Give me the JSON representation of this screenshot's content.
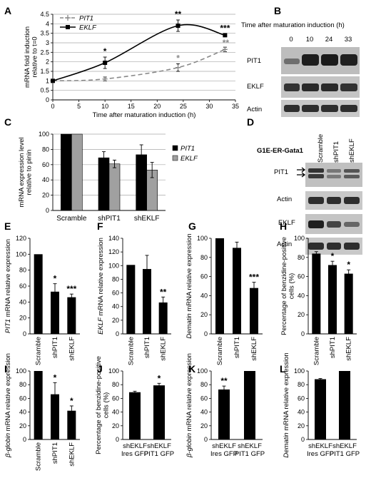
{
  "panels": {
    "A": "A",
    "B": "B",
    "C": "C",
    "D": "D",
    "E": "E",
    "F": "F",
    "G": "G",
    "H": "H",
    "I": "I",
    "J": "J",
    "K": "K",
    "L": "L"
  },
  "blotB": {
    "header": "Time after maturation induction (h)",
    "timepoints": [
      "0",
      "10",
      "24",
      "33"
    ],
    "bands": [
      "PIT1",
      "EKLF",
      "Actin"
    ]
  },
  "blotD": {
    "cellline": "G1E-ER-Gata1",
    "columns": [
      "Scramble",
      "shPIT1",
      "shEKLF"
    ],
    "bands": [
      "PIT1",
      "Actin",
      "EKLF",
      "Actin"
    ]
  },
  "chart_data": [
    {
      "id": "A",
      "type": "line",
      "x": [
        0,
        10,
        24,
        33
      ],
      "xlabel": "Time after maturation induction (h)",
      "ylabel": "mRNA fold induction relative to t=0",
      "xlim": [
        0,
        35
      ],
      "ylim": [
        0,
        4.5
      ],
      "xticks": [
        "0",
        "5",
        "10",
        "15",
        "20",
        "25",
        "30",
        "35"
      ],
      "yticks": [
        "0",
        "0.5",
        "1",
        "1.5",
        "2",
        "2.5",
        "3",
        "3.5",
        "4",
        "4.5"
      ],
      "grid": true,
      "legend": "top-left",
      "series": [
        {
          "name": "PIT1",
          "values": [
            1,
            1.1,
            1.7,
            2.65
          ],
          "errors": [
            0.05,
            0.1,
            0.2,
            0.12
          ],
          "style": "dashed",
          "color": "#888888"
        },
        {
          "name": "EKLF",
          "values": [
            1,
            1.95,
            3.9,
            3.4
          ],
          "errors": [
            0.05,
            0.3,
            0.3,
            0.07
          ],
          "style": "solid",
          "color": "#000000"
        }
      ],
      "annotations": [
        {
          "x": 10,
          "series": 1,
          "text": "*"
        },
        {
          "x": 24,
          "series": 1,
          "text": "**"
        },
        {
          "x": 33,
          "series": 1,
          "text": "***"
        },
        {
          "x": 24,
          "series": 0,
          "text": "*"
        },
        {
          "x": 33,
          "series": 0,
          "text": "**"
        }
      ]
    },
    {
      "id": "C",
      "type": "bar",
      "categories": [
        "Scramble",
        "shPIT1",
        "shEKLF"
      ],
      "ylabel": "mRNA expression level relative to pinin",
      "ylim": [
        0,
        100
      ],
      "yticks": [
        "0",
        "20",
        "40",
        "60",
        "80",
        "100"
      ],
      "grid": true,
      "legend": "right",
      "series": [
        {
          "name": "PIT1",
          "values": [
            100,
            69,
            73
          ],
          "errors": [
            0,
            8,
            13
          ],
          "color": "#000000"
        },
        {
          "name": "EKLF",
          "values": [
            100,
            61,
            53
          ],
          "errors": [
            0,
            5,
            10
          ],
          "color": "#a0a0a0"
        }
      ]
    },
    {
      "id": "E",
      "type": "bar",
      "categories": [
        "Scramble",
        "shPIT1",
        "shEKLF"
      ],
      "values": [
        100,
        53,
        46
      ],
      "errors": [
        0,
        10,
        4
      ],
      "ylabel_italic": "PIT1",
      "ylabel": " mRNA relative expression",
      "ylim": [
        0,
        120
      ],
      "yticks": [
        "0",
        "20",
        "40",
        "60",
        "80",
        "100",
        "120"
      ],
      "annotations": [
        "",
        "*",
        "***"
      ]
    },
    {
      "id": "F",
      "type": "bar",
      "categories": [
        "Scramble",
        "shPIT1",
        "shEKLF"
      ],
      "values": [
        101,
        95,
        46
      ],
      "errors": [
        0,
        20,
        8
      ],
      "ylabel_italic": "EKLF",
      "ylabel": " mRNA relative expression",
      "ylim": [
        0,
        140
      ],
      "yticks": [
        "0",
        "20",
        "40",
        "60",
        "80",
        "100",
        "120",
        "140"
      ],
      "annotations": [
        "",
        "",
        "**"
      ]
    },
    {
      "id": "G",
      "type": "bar",
      "categories": [
        "Scramble",
        "shPIT1",
        "shEKLF"
      ],
      "values": [
        100,
        90,
        48
      ],
      "errors": [
        0,
        6,
        6
      ],
      "ylabel_italic": "Dematin",
      "ylabel": " mRNA relative expression",
      "ylim": [
        0,
        100
      ],
      "yticks": [
        "0",
        "20",
        "40",
        "60",
        "80",
        "100"
      ],
      "annotations": [
        "",
        "",
        "***"
      ]
    },
    {
      "id": "H",
      "type": "bar",
      "categories": [
        "Scramble",
        "shPIT1",
        "shEKLF"
      ],
      "values": [
        84,
        72,
        63
      ],
      "errors": [
        2,
        4,
        4
      ],
      "ylabel": "Percentage of benzidine-positive cells (%)",
      "ylim": [
        0,
        100
      ],
      "yticks": [
        "0",
        "20",
        "40",
        "60",
        "80",
        "100"
      ],
      "annotations": [
        "",
        "*",
        "*"
      ]
    },
    {
      "id": "I",
      "type": "bar",
      "categories": [
        "Scramble",
        "shPIT1",
        "shEKLF"
      ],
      "values": [
        100,
        66,
        42
      ],
      "errors": [
        0,
        17,
        7
      ],
      "ylabel_italic": "β-globin",
      "ylabel": " mRNA relative expression",
      "ylim": [
        0,
        100
      ],
      "yticks": [
        "0",
        "20",
        "40",
        "60",
        "80",
        "100"
      ],
      "annotations": [
        "",
        "*",
        "*"
      ]
    },
    {
      "id": "J",
      "type": "bar",
      "categories": [
        "shEKLF Ires GFP",
        "shEKLF PIT1 GFP"
      ],
      "values": [
        69,
        79
      ],
      "errors": [
        1.5,
        3
      ],
      "ylabel": "Percentage of benzidine-positive cells (%)",
      "ylim": [
        0,
        100
      ],
      "yticks": [
        "0",
        "20",
        "40",
        "60",
        "80",
        "100"
      ],
      "annotations": [
        "",
        "*"
      ]
    },
    {
      "id": "K",
      "type": "bar",
      "categories": [
        "shEKLF Ires GFP",
        "shEKLF PIT1 GFP"
      ],
      "values": [
        73,
        100
      ],
      "errors": [
        5,
        0
      ],
      "ylabel_italic": "β-globin",
      "ylabel": " mRNA relative expression",
      "ylim": [
        0,
        100
      ],
      "yticks": [
        "0",
        "20",
        "40",
        "60",
        "80",
        "100"
      ],
      "annotations": [
        "**",
        ""
      ]
    },
    {
      "id": "L",
      "type": "bar",
      "categories": [
        "shEKLF Ires GFP",
        "shEKLF PIT1 GFP"
      ],
      "values": [
        88,
        100
      ],
      "errors": [
        1,
        0
      ],
      "ylabel_italic": "Dematin",
      "ylabel": " mRNA relative expression",
      "ylim": [
        0,
        100
      ],
      "yticks": [
        "0",
        "20",
        "40",
        "60",
        "80",
        "100"
      ],
      "annotations": [
        "",
        ""
      ]
    }
  ]
}
